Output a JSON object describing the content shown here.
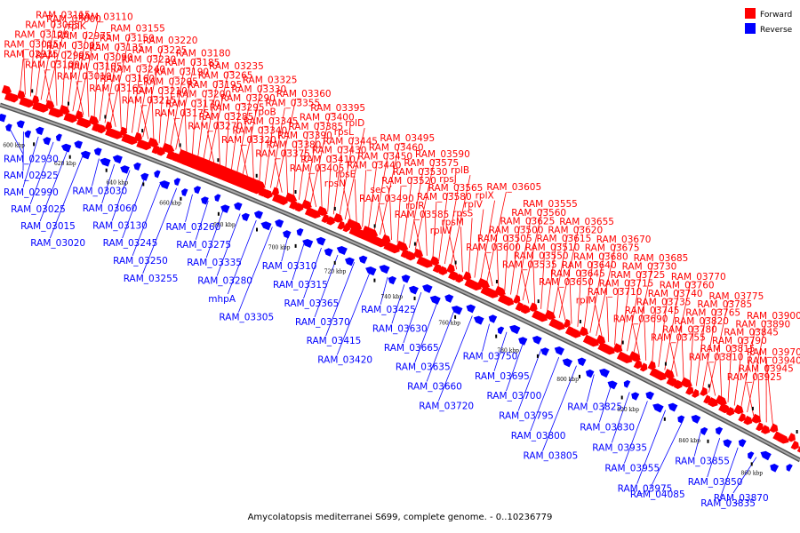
{
  "colors": {
    "forward": "#ff0000",
    "reverse": "#0000ff",
    "backbone": "#666666",
    "background": "#ffffff"
  },
  "legend": [
    {
      "label": "Forward",
      "strand": "forward"
    },
    {
      "label": "Reverse",
      "strand": "reverse"
    }
  ],
  "caption": "Amycolatopsis mediterranei S699, complete genome. - 0..10236779",
  "ticks": [
    {
      "label": "600 kbp",
      "kbp": 600
    },
    {
      "label": "620 kbp",
      "kbp": 620
    },
    {
      "label": "640 kbp",
      "kbp": 640
    },
    {
      "label": "660 kbp",
      "kbp": 660
    },
    {
      "label": "680 kbp",
      "kbp": 680
    },
    {
      "label": "700 kbp",
      "kbp": 700
    },
    {
      "label": "720 kbp",
      "kbp": 720
    },
    {
      "label": "740 kbp",
      "kbp": 740
    },
    {
      "label": "760 kbp",
      "kbp": 760
    },
    {
      "label": "780 kbp",
      "kbp": 780
    },
    {
      "label": "800 kbp",
      "kbp": 800
    },
    {
      "label": "820 kbp",
      "kbp": 820
    },
    {
      "label": "840 kbp",
      "kbp": 840
    },
    {
      "label": "860 kbp",
      "kbp": 860
    }
  ],
  "forward_labels": [
    "RAM_02935",
    "RAM_03035",
    "RAM_03120",
    "RAM_03005",
    "RAM_03115",
    "RAM_03000",
    "RAM_03100",
    "RAM_02995",
    "RAM_03095",
    "RAM_02975",
    "rplK",
    "RAM_03110",
    "RAM_03010",
    "RAM_03105",
    "RAM_03090",
    "RAM_03135",
    "RAM_03150",
    "RAM_03155",
    "RAM_03165",
    "RAM_03160",
    "RAM_03240",
    "RAM_03230",
    "RAM_03225",
    "RAM_03220",
    "RAM_03215",
    "RAM_03210",
    "RAM_03205",
    "RAM_03190",
    "RAM_03185",
    "RAM_03180",
    "RAM_03175",
    "RAM_03170",
    "RAM_03200",
    "RAM_03195",
    "RAM_03265",
    "RAM_03235",
    "RAM_03270",
    "RAM_03285",
    "RAM_03295",
    "RAM_03290",
    "RAM_03330",
    "RAM_03325",
    "RAM_03320",
    "RAM_03340",
    "RAM_03345",
    "rpoB",
    "RAM_03355",
    "RAM_03360",
    "RAM_03375",
    "RAM_03380",
    "RAM_03390",
    "RAM_03385",
    "RAM_03400",
    "RAM_03395",
    "RAM_03405",
    "RAM_03410",
    "RAM_03430",
    "RAM_03445",
    "rpsL",
    "rplD",
    "rpsN",
    "rpsE",
    "RAM_03440",
    "RAM_03450",
    "RAM_03460",
    "RAM_03495",
    "RAM_03490",
    "secY",
    "RAM_03520",
    "RAM_03530",
    "RAM_03575",
    "RAM_03590",
    "RAM_03585",
    "rplR",
    "RAM_03580",
    "RAM_03565",
    "rpsJ",
    "rplB",
    "rplW",
    "rpsM",
    "rpsS",
    "rplV",
    "rplX",
    "RAM_03605",
    "RAM_03600",
    "RAM_03505",
    "RAM_03500",
    "RAM_03625",
    "RAM_03560",
    "RAM_03555",
    "RAM_03535",
    "RAM_03550",
    "RAM_03510",
    "RAM_03615",
    "RAM_03620",
    "RAM_03655",
    "RAM_03650",
    "RAM_03645",
    "RAM_03640",
    "RAM_03680",
    "RAM_03675",
    "RAM_03670",
    "rplM",
    "RAM_03710",
    "RAM_03715",
    "RAM_03725",
    "RAM_03730",
    "RAM_03685",
    "RAM_03690",
    "RAM_03745",
    "RAM_03735",
    "RAM_03740",
    "RAM_03760",
    "RAM_03770",
    "RAM_03755",
    "RAM_03780",
    "RAM_03820",
    "RAM_03765",
    "RAM_03785",
    "RAM_03775",
    "RAM_03810",
    "RAM_03815",
    "RAM_03790",
    "RAM_03845",
    "RAM_03890",
    "RAM_03900",
    "RAM_03925",
    "RAM_03945",
    "RAM_03940",
    "RAM_03970"
  ],
  "reverse_labels": [
    "RAM_02930",
    "RAM_02925",
    "RAM_02990",
    "RAM_03025",
    "RAM_03015",
    "RAM_03020",
    "RAM_03030",
    "RAM_03060",
    "RAM_03130",
    "RAM_03245",
    "RAM_03250",
    "RAM_03255",
    "RAM_03260",
    "RAM_03275",
    "RAM_03335",
    "RAM_03280",
    "mhpA",
    "RAM_03305",
    "RAM_03310",
    "RAM_03315",
    "RAM_03365",
    "RAM_03370",
    "RAM_03415",
    "RAM_03420",
    "RAM_03425",
    "RAM_03630",
    "RAM_03665",
    "RAM_03635",
    "RAM_03660",
    "RAM_03720",
    "RAM_03750",
    "RAM_03695",
    "RAM_03700",
    "RAM_03795",
    "RAM_03800",
    "RAM_03805",
    "RAM_03825",
    "RAM_03830",
    "RAM_03935",
    "RAM_03955",
    "RAM_03975",
    "RAM_04085",
    "RAM_03855",
    "RAM_03850",
    "RAM_03835",
    "RAM_03870"
  ]
}
